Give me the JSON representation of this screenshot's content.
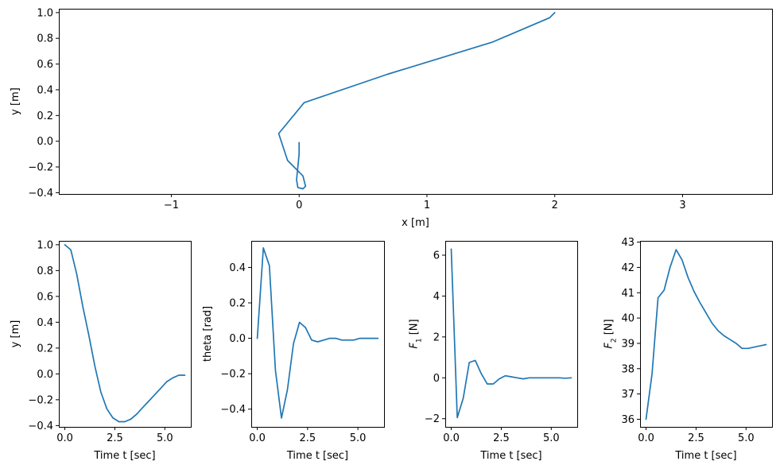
{
  "chart_data": [
    {
      "type": "line",
      "id": "xy",
      "title": "",
      "xlabel": "x [m]",
      "ylabel": "y [m]",
      "xlim": [
        -1.88,
        3.7
      ],
      "ylim": [
        -0.41,
        1.03
      ],
      "xticks": [
        -1,
        0,
        1,
        2,
        3
      ],
      "xtick_labels": [
        "−1",
        "0",
        "1",
        "2",
        "3"
      ],
      "yticks": [
        -0.4,
        -0.2,
        0.0,
        0.2,
        0.4,
        0.6,
        0.8,
        1.0
      ],
      "ytick_labels": [
        "−0.4",
        "−0.2",
        "0.0",
        "0.2",
        "0.4",
        "0.6",
        "0.8",
        "1.0"
      ],
      "grid": false,
      "series": [
        {
          "x": [
            2.0,
            1.96,
            1.51,
            0.69,
            0.04,
            -0.16,
            -0.09,
            0.03,
            0.05,
            0.03,
            -0.01,
            -0.02,
            -0.01,
            0.0,
            0.0,
            0.0
          ],
          "y": [
            1.0,
            0.96,
            0.77,
            0.52,
            0.3,
            0.06,
            -0.15,
            -0.27,
            -0.35,
            -0.37,
            -0.36,
            -0.3,
            -0.2,
            -0.1,
            -0.05,
            -0.01
          ]
        }
      ]
    },
    {
      "type": "line",
      "id": "y_t",
      "title": "",
      "xlabel": "Time t [sec]",
      "ylabel": "y [m]",
      "xlim": [
        -0.3,
        6.3
      ],
      "ylim": [
        -0.41,
        1.03
      ],
      "xticks": [
        0,
        2.5,
        5
      ],
      "xtick_labels": [
        "0.0",
        "2.5",
        "5.0"
      ],
      "yticks": [
        -0.4,
        -0.2,
        0.0,
        0.2,
        0.4,
        0.6,
        0.8,
        1.0
      ],
      "ytick_labels": [
        "−0.4",
        "−0.2",
        "0.0",
        "0.2",
        "0.4",
        "0.6",
        "0.8",
        "1.0"
      ],
      "grid": false,
      "series": [
        {
          "x": [
            0,
            0.3,
            0.6,
            0.9,
            1.2,
            1.5,
            1.8,
            2.1,
            2.4,
            2.7,
            3.0,
            3.3,
            3.6,
            3.9,
            4.2,
            4.5,
            4.8,
            5.1,
            5.4,
            5.7,
            6.0
          ],
          "y": [
            1.0,
            0.96,
            0.77,
            0.52,
            0.3,
            0.06,
            -0.14,
            -0.27,
            -0.34,
            -0.37,
            -0.37,
            -0.35,
            -0.31,
            -0.26,
            -0.21,
            -0.16,
            -0.11,
            -0.06,
            -0.03,
            -0.01,
            -0.01
          ]
        }
      ]
    },
    {
      "type": "line",
      "id": "theta_t",
      "title": "",
      "xlabel": "Time t [sec]",
      "ylabel": "theta [rad]",
      "xlim": [
        -0.3,
        6.3
      ],
      "ylim": [
        -0.5,
        0.55
      ],
      "xticks": [
        0,
        2.5,
        5
      ],
      "xtick_labels": [
        "0.0",
        "2.5",
        "5.0"
      ],
      "yticks": [
        -0.4,
        -0.2,
        0.0,
        0.2,
        0.4
      ],
      "ytick_labels": [
        "−0.4",
        "−0.2",
        "0.0",
        "0.2",
        "0.4"
      ],
      "grid": false,
      "series": [
        {
          "x": [
            0,
            0.3,
            0.6,
            0.9,
            1.2,
            1.5,
            1.8,
            2.1,
            2.4,
            2.7,
            3.0,
            3.3,
            3.6,
            3.9,
            4.2,
            4.5,
            4.8,
            5.1,
            5.4,
            5.7,
            6.0
          ],
          "y": [
            0.0,
            0.51,
            0.41,
            -0.18,
            -0.45,
            -0.29,
            -0.03,
            0.09,
            0.06,
            -0.01,
            -0.02,
            -0.01,
            0.0,
            0.0,
            -0.01,
            -0.01,
            -0.01,
            0.0,
            0.0,
            0.0,
            0.0
          ]
        }
      ]
    },
    {
      "type": "line",
      "id": "F1_t",
      "title": "",
      "xlabel": "Time t [sec]",
      "ylabel": "F1 [N]",
      "xlim": [
        -0.3,
        6.3
      ],
      "ylim": [
        -2.4,
        6.7
      ],
      "xticks": [
        0,
        2.5,
        5
      ],
      "xtick_labels": [
        "0.0",
        "2.5",
        "5.0"
      ],
      "yticks": [
        -2,
        0,
        2,
        4,
        6
      ],
      "ytick_labels": [
        "−2",
        "0",
        "2",
        "4",
        "6"
      ],
      "grid": false,
      "series": [
        {
          "x": [
            0,
            0.3,
            0.6,
            0.9,
            1.2,
            1.5,
            1.8,
            2.1,
            2.4,
            2.7,
            3.0,
            3.3,
            3.6,
            3.9,
            4.2,
            4.5,
            4.8,
            5.1,
            5.4,
            5.7,
            6.0
          ],
          "y": [
            6.3,
            -1.95,
            -1.0,
            0.75,
            0.85,
            0.2,
            -0.3,
            -0.3,
            -0.05,
            0.1,
            0.05,
            0.0,
            -0.05,
            0.0,
            0.0,
            0.0,
            0.0,
            0.0,
            0.0,
            -0.02,
            0.0
          ]
        }
      ]
    },
    {
      "type": "line",
      "id": "F2_t",
      "title": "",
      "xlabel": "Time t [sec]",
      "ylabel": "F2 [N]",
      "xlim": [
        -0.3,
        6.3
      ],
      "ylim": [
        35.7,
        43.05
      ],
      "xticks": [
        0,
        2.5,
        5
      ],
      "xtick_labels": [
        "0.0",
        "2.5",
        "5.0"
      ],
      "yticks": [
        36,
        37,
        38,
        39,
        40,
        41,
        42,
        43
      ],
      "ytick_labels": [
        "36",
        "37",
        "38",
        "39",
        "40",
        "41",
        "42",
        "43"
      ],
      "grid": false,
      "series": [
        {
          "x": [
            0,
            0.3,
            0.6,
            0.9,
            1.2,
            1.5,
            1.8,
            2.1,
            2.4,
            2.7,
            3.0,
            3.3,
            3.6,
            3.9,
            4.2,
            4.5,
            4.8,
            5.1,
            5.4,
            5.7,
            6.0
          ],
          "y": [
            36.0,
            37.8,
            40.8,
            41.1,
            42.0,
            42.7,
            42.3,
            41.6,
            41.05,
            40.6,
            40.2,
            39.8,
            39.5,
            39.3,
            39.15,
            39.0,
            38.8,
            38.8,
            38.85,
            38.9,
            38.95
          ]
        }
      ]
    }
  ]
}
